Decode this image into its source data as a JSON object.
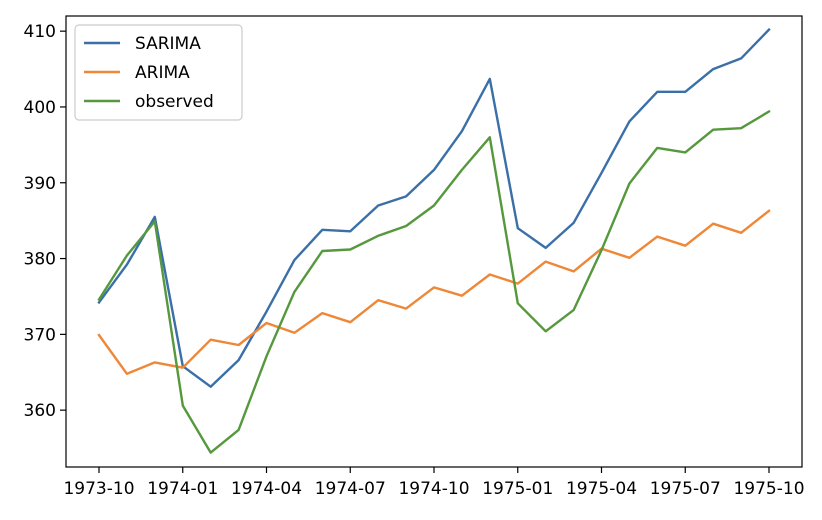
{
  "chart_data": {
    "type": "line",
    "x": [
      "1973-10",
      "1973-11",
      "1973-12",
      "1974-01",
      "1974-02",
      "1974-03",
      "1974-04",
      "1974-05",
      "1974-06",
      "1974-07",
      "1974-08",
      "1974-09",
      "1974-10",
      "1974-11",
      "1974-12",
      "1975-01",
      "1975-02",
      "1975-03",
      "1975-04",
      "1975-05",
      "1975-06",
      "1975-07",
      "1975-08",
      "1975-09",
      "1975-10"
    ],
    "x_tick_labels": [
      "1973-10",
      "1974-01",
      "1974-04",
      "1974-07",
      "1974-10",
      "1975-01",
      "1975-04",
      "1975-07",
      "1975-10"
    ],
    "x_tick_indices": [
      0,
      3,
      6,
      9,
      12,
      15,
      18,
      21,
      24
    ],
    "y_ticks": [
      360,
      370,
      380,
      390,
      400,
      410
    ],
    "ylim": [
      352.5,
      412.0
    ],
    "title": "",
    "xlabel": "",
    "ylabel": "",
    "grid": false,
    "legend_position": "top-left",
    "series": [
      {
        "name": "SARIMA",
        "color": "#3a6fa8",
        "values": [
          374.2,
          379.2,
          385.5,
          365.8,
          363.1,
          366.6,
          373.0,
          379.8,
          383.8,
          383.6,
          387.0,
          388.2,
          391.7,
          396.8,
          403.7,
          384.0,
          381.4,
          384.7,
          391.3,
          398.1,
          402.0,
          402.0,
          405.0,
          406.4,
          410.2
        ]
      },
      {
        "name": "ARIMA",
        "color": "#ee8737",
        "values": [
          369.9,
          364.8,
          366.3,
          365.6,
          369.3,
          368.6,
          371.5,
          370.2,
          372.8,
          371.6,
          374.5,
          373.4,
          376.2,
          375.1,
          377.9,
          376.7,
          379.6,
          378.3,
          381.3,
          380.1,
          382.9,
          381.7,
          384.6,
          383.4,
          386.3
        ]
      },
      {
        "name": "observed",
        "color": "#55983d",
        "values": [
          374.6,
          380.4,
          384.9,
          360.6,
          354.4,
          357.4,
          367.1,
          375.6,
          381.0,
          381.2,
          383.0,
          384.3,
          387.0,
          391.7,
          396.0,
          374.1,
          370.4,
          373.2,
          381.1,
          389.9,
          394.6,
          394.0,
          397.0,
          397.2,
          399.4
        ]
      }
    ]
  }
}
